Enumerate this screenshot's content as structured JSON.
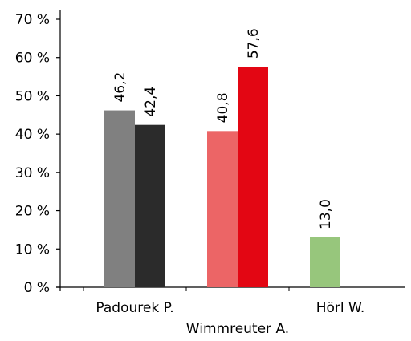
{
  "chart_data": {
    "type": "bar",
    "ylim": [
      0,
      70
    ],
    "yticks": [
      0,
      10,
      20,
      30,
      40,
      50,
      60,
      70
    ],
    "tick_suffix": " %",
    "grid": false,
    "legend": "none",
    "categories": [
      "Padourek P.",
      "Wimmreuter A.",
      "Hörl W."
    ],
    "groups": [
      {
        "category": "Padourek P.",
        "bars": [
          {
            "value": 46.2,
            "label": "46,2",
            "color": "#808080"
          },
          {
            "value": 42.4,
            "label": "42,4",
            "color": "#2b2b2b"
          }
        ]
      },
      {
        "category": "Wimmreuter A.",
        "bars": [
          {
            "value": 40.8,
            "label": "40,8",
            "color": "#ec6566"
          },
          {
            "value": 57.6,
            "label": "57,6",
            "color": "#e30613"
          }
        ]
      },
      {
        "category": "Hörl W.",
        "bars": [
          {
            "value": 13.0,
            "label": "13,0",
            "color": "#97c67c"
          }
        ]
      }
    ]
  }
}
